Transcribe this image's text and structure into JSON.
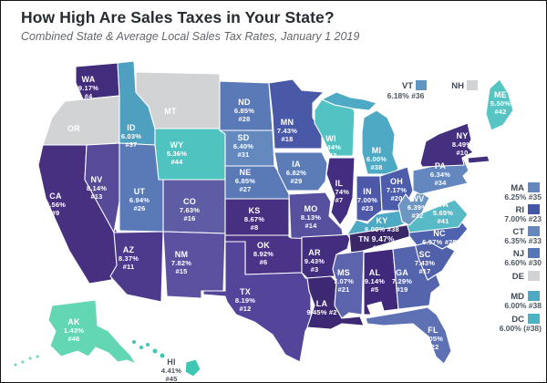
{
  "header": {
    "title": "How High Are Sales Taxes in Your State?",
    "subtitle": "Combined State & Average Local Sales Tax Rates, January 1 2019"
  },
  "colors": {
    "background": "#ffffff",
    "frame": "#141414",
    "title": "#272c33",
    "subtitle": "#63676c",
    "state_border": "#ffffff",
    "state_label": "#ffffff",
    "offmap_label": "#4a5158",
    "legend_abbr": "#3e4956",
    "legend_value": "#4d5761",
    "no_data": "#d2d3d5"
  },
  "map": {
    "type": "choropleth",
    "unit": "combined state & average local sales tax rate (%)",
    "states": [
      {
        "abbr": "WA",
        "rate": 9.17,
        "rank": 4,
        "color": "#422c7c",
        "label_lines": [
          "WA",
          "9.17%",
          "#4"
        ]
      },
      {
        "abbr": "OR",
        "rate": null,
        "rank": null,
        "color": "#d2d3d5",
        "label_lines": [
          "OR"
        ]
      },
      {
        "abbr": "CA",
        "rate": 8.56,
        "rank": 9,
        "color": "#46307f",
        "label_lines": [
          "CA",
          "8.56%",
          "#9"
        ]
      },
      {
        "abbr": "NV",
        "rate": 8.14,
        "rank": 13,
        "color": "#564a99",
        "label_lines": [
          "NV",
          "8.14%",
          "#13"
        ]
      },
      {
        "abbr": "ID",
        "rate": 6.03,
        "rank": 37,
        "color": "#4fa0c0",
        "label_lines": [
          "ID",
          "6.03%",
          "#37"
        ]
      },
      {
        "abbr": "MT",
        "rate": null,
        "rank": null,
        "color": "#d2d3d5",
        "label_lines": [
          "MT"
        ]
      },
      {
        "abbr": "WY",
        "rate": 5.36,
        "rank": 44,
        "color": "#4fc3c0",
        "label_lines": [
          "WY",
          "5.36%",
          "#44"
        ]
      },
      {
        "abbr": "UT",
        "rate": 6.94,
        "rank": 26,
        "color": "#5a79b7",
        "label_lines": [
          "UT",
          "6.94%",
          "#26"
        ]
      },
      {
        "abbr": "CO",
        "rate": 7.63,
        "rank": 16,
        "color": "#5f5ca6",
        "label_lines": [
          "CO",
          "7.63%",
          "#16"
        ]
      },
      {
        "abbr": "AZ",
        "rate": 8.37,
        "rank": 11,
        "color": "#4d3a8c",
        "label_lines": [
          "AZ",
          "8.37%",
          "#11"
        ]
      },
      {
        "abbr": "NM",
        "rate": 7.82,
        "rank": 15,
        "color": "#5b51a0",
        "label_lines": [
          "NM",
          "7.82%",
          "#15"
        ]
      },
      {
        "abbr": "ND",
        "rate": 6.85,
        "rank": 28,
        "color": "#5a79b7",
        "label_lines": [
          "ND",
          "6.85%",
          "#28"
        ]
      },
      {
        "abbr": "SD",
        "rate": 6.4,
        "rank": 31,
        "color": "#6489bf",
        "label_lines": [
          "SD",
          "6.40%",
          "#31"
        ]
      },
      {
        "abbr": "NE",
        "rate": 6.85,
        "rank": 27,
        "color": "#5a79b7",
        "label_lines": [
          "NE",
          "6.85%",
          "#27"
        ]
      },
      {
        "abbr": "KS",
        "rate": 8.67,
        "rank": 8,
        "color": "#472f82",
        "label_lines": [
          "KS",
          "8.67%",
          "#8"
        ]
      },
      {
        "abbr": "OK",
        "rate": 8.92,
        "rank": 6,
        "color": "#4b3487",
        "label_lines": [
          "OK",
          "8.92%",
          "#6"
        ]
      },
      {
        "abbr": "TX",
        "rate": 8.19,
        "rank": 12,
        "color": "#55459a",
        "label_lines": [
          "TX",
          "8.19%",
          "#12"
        ]
      },
      {
        "abbr": "MN",
        "rate": 7.43,
        "rank": 18,
        "color": "#4a58a8",
        "label_lines": [
          "MN",
          "7.43%",
          "#18"
        ]
      },
      {
        "abbr": "IA",
        "rate": 6.82,
        "rank": 29,
        "color": "#5c7cb8",
        "label_lines": [
          "IA",
          "6.82%",
          "#29"
        ]
      },
      {
        "abbr": "MO",
        "rate": 8.13,
        "rank": 14,
        "color": "#57509f",
        "label_lines": [
          "MO",
          "8.13%",
          "#14"
        ]
      },
      {
        "abbr": "AR",
        "rate": 9.43,
        "rank": 3,
        "color": "#432d7e",
        "label_lines": [
          "AR",
          "9.43%",
          "#3"
        ]
      },
      {
        "abbr": "LA",
        "rate": 9.45,
        "rank": 2,
        "color": "#3d2973",
        "label_lines": [
          "LA",
          "9.45% #2"
        ]
      },
      {
        "abbr": "WI",
        "rate": 5.44,
        "rank": 43,
        "color": "#52c2c2",
        "label_lines": [
          "WI",
          "5.44%",
          "#43"
        ]
      },
      {
        "abbr": "IL",
        "rate": 8.74,
        "rank": 7,
        "color": "#432d80",
        "label_lines": [
          "IL",
          "8.74%",
          "#7"
        ]
      },
      {
        "abbr": "MI",
        "rate": 6.0,
        "rank": 38,
        "color": "#4da9c4",
        "label_lines": [
          "MI",
          "6.00%",
          "#38"
        ]
      },
      {
        "abbr": "IN",
        "rate": 7.0,
        "rank": 23,
        "color": "#4e58a8",
        "label_lines": [
          "IN",
          "7.00%",
          "#23"
        ]
      },
      {
        "abbr": "OH",
        "rate": 7.17,
        "rank": 20,
        "color": "#4d5dab",
        "label_lines": [
          "OH",
          "7.17%",
          "#20"
        ]
      },
      {
        "abbr": "KY",
        "rate": 6.0,
        "rank": 38,
        "color": "#4da9c4",
        "label_lines": [
          "KY",
          "6.00% #38"
        ]
      },
      {
        "abbr": "TN",
        "rate": 9.47,
        "rank": 1,
        "color": "#392768",
        "label_lines": [
          "TN 9.47%",
          "#1"
        ]
      },
      {
        "abbr": "MS",
        "rate": 7.07,
        "rank": 21,
        "color": "#5c64ae",
        "label_lines": [
          "MS",
          "7.07%",
          "#21"
        ]
      },
      {
        "abbr": "AL",
        "rate": 9.14,
        "rank": 5,
        "color": "#40297a",
        "label_lines": [
          "AL",
          "9.14%",
          "#5"
        ]
      },
      {
        "abbr": "GA",
        "rate": 7.29,
        "rank": 19,
        "color": "#5565ad",
        "label_lines": [
          "GA",
          "7.29%",
          "#19"
        ]
      },
      {
        "abbr": "SC",
        "rate": 7.43,
        "rank": 17,
        "color": "#5061aa",
        "label_lines": [
          "SC",
          "7.43%",
          "#17"
        ]
      },
      {
        "abbr": "FL",
        "rate": 7.05,
        "rank": 22,
        "color": "#5d71b4",
        "label_lines": [
          "FL",
          "7.05%",
          "#22"
        ]
      },
      {
        "abbr": "NC",
        "rate": 6.97,
        "rank": 25,
        "color": "#4e62ad",
        "label_lines": [
          "NC",
          "6.97% #25"
        ]
      },
      {
        "abbr": "VA",
        "rate": 5.65,
        "rank": 41,
        "color": "#58bac6",
        "label_lines": [
          "VA",
          "5.65%",
          "#41"
        ]
      },
      {
        "abbr": "WV",
        "rate": 6.39,
        "rank": 32,
        "color": "#6e96c2",
        "label_lines": [
          "WV",
          "6.39%",
          "#32"
        ]
      },
      {
        "abbr": "PA",
        "rate": 6.34,
        "rank": 34,
        "color": "#6587bf",
        "label_lines": [
          "PA",
          "6.34%",
          "#34"
        ]
      },
      {
        "abbr": "NY",
        "rate": 8.49,
        "rank": 10,
        "color": "#45307f",
        "label_lines": [
          "NY",
          "8.49%",
          "#10"
        ]
      },
      {
        "abbr": "ME",
        "rate": 5.5,
        "rank": 42,
        "color": "#56c5c3",
        "label_lines": [
          "ME",
          "5.50%",
          "#42"
        ]
      },
      {
        "abbr": "AK",
        "rate": 1.43,
        "rank": 46,
        "color": "#63d6b4",
        "label_lines": [
          "AK",
          "1.43%",
          "#46"
        ]
      },
      {
        "abbr": "HI",
        "rate": 4.41,
        "rank": 45,
        "color": "#3fc7b4",
        "label_lines": [
          "HI",
          "4.41%",
          "#45"
        ]
      }
    ]
  },
  "legend_top": [
    {
      "abbr": "VT",
      "value": "6.18% #36",
      "rate": 6.18,
      "rank": 36,
      "color": "#6195c2"
    },
    {
      "abbr": "NH",
      "value": "",
      "rate": null,
      "rank": null,
      "color": "#d2d3d5"
    }
  ],
  "legend_right": [
    {
      "abbr": "MA",
      "value": "6.25% #35",
      "rate": 6.25,
      "rank": 35,
      "color": "#6587bf"
    },
    {
      "abbr": "RI",
      "value": "7.00% #23",
      "rate": 7.0,
      "rank": 23,
      "color": "#4456a5"
    },
    {
      "abbr": "CT",
      "value": "6.35% #33",
      "rate": 6.35,
      "rank": 33,
      "color": "#6587bf"
    },
    {
      "abbr": "NJ",
      "value": "6.60% #30",
      "rate": 6.6,
      "rank": 30,
      "color": "#5577b6"
    },
    {
      "abbr": "DE",
      "value": "",
      "rate": null,
      "rank": null,
      "color": "#d2d3d5"
    },
    {
      "abbr": "MD",
      "value": "6.00% #38",
      "rate": 6.0,
      "rank": 38,
      "color": "#4da9c4"
    },
    {
      "abbr": "DC",
      "value": "6.00% (#38)",
      "rate": 6.0,
      "rank": 38,
      "color": "#4db3c4"
    }
  ]
}
